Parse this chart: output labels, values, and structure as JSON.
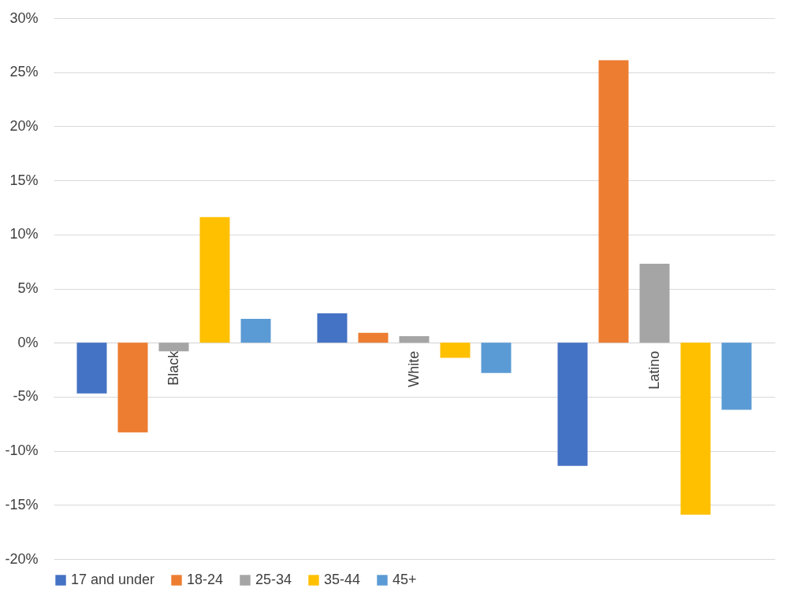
{
  "chart_data": {
    "type": "bar",
    "categories": [
      "Black",
      "White",
      "Latino"
    ],
    "series": [
      {
        "name": "17 and under",
        "color": "#4472c4",
        "values": [
          -4.7,
          2.7,
          -11.4
        ]
      },
      {
        "name": "18-24",
        "color": "#ed7d31",
        "values": [
          -8.3,
          0.9,
          26.1
        ]
      },
      {
        "name": "25-34",
        "color": "#a5a5a5",
        "values": [
          -0.8,
          0.6,
          7.3
        ]
      },
      {
        "name": "35-44",
        "color": "#ffc000",
        "values": [
          11.6,
          -1.4,
          -15.9
        ]
      },
      {
        "name": "45+",
        "color": "#5b9bd5",
        "values": [
          2.2,
          -2.8,
          -6.2
        ]
      }
    ],
    "ylim": [
      -20,
      30
    ],
    "yticks": [
      {
        "value": -20,
        "label": "-20%"
      },
      {
        "value": -15,
        "label": "-15%"
      },
      {
        "value": -10,
        "label": "-10%"
      },
      {
        "value": -5,
        "label": "-5%"
      },
      {
        "value": 0,
        "label": "0%"
      },
      {
        "value": 5,
        "label": "5%"
      },
      {
        "value": 10,
        "label": "10%"
      },
      {
        "value": 15,
        "label": "15%"
      },
      {
        "value": 20,
        "label": "20%"
      },
      {
        "value": 25,
        "label": "25%"
      },
      {
        "value": 30,
        "label": "30%"
      }
    ],
    "grid": "y",
    "legend": "bottom"
  }
}
